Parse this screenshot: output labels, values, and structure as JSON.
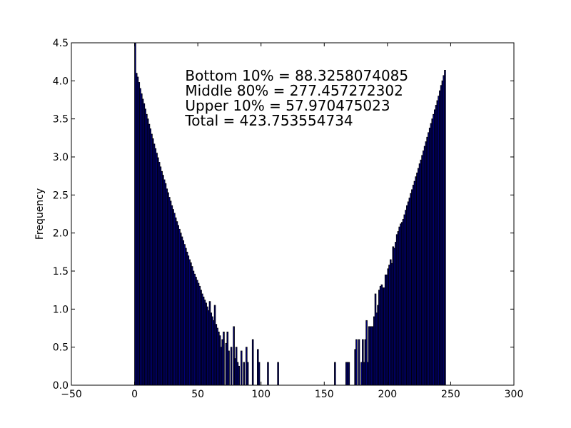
{
  "chart_data": {
    "type": "bar",
    "title": "",
    "xlabel": "",
    "ylabel": "Frequency",
    "xlim": [
      -50,
      300
    ],
    "ylim": [
      0,
      4.5
    ],
    "xticks": [
      -50,
      0,
      50,
      100,
      150,
      200,
      250,
      300
    ],
    "xtick_labels": [
      "−50",
      "0",
      "50",
      "100",
      "150",
      "200",
      "250",
      "300"
    ],
    "yticks": [
      0,
      0.5,
      1.0,
      1.5,
      2.0,
      2.5,
      3.0,
      3.5,
      4.0,
      4.5
    ],
    "ytick_labels": [
      "0.0",
      "0.5",
      "1.0",
      "1.5",
      "2.0",
      "2.5",
      "3.0",
      "3.5",
      "4.0",
      "4.5"
    ],
    "grid": false,
    "bar_color": "#00007f",
    "bar_edge_color": "#000000",
    "bar_width": 1,
    "annotations": [
      "Bottom 10% = 88.3258074085",
      "Middle 80% = 277.457272302",
      "Upper 10% = 57.970475023",
      "Total = 423.753554734"
    ],
    "bars": [
      [
        0,
        4.5
      ],
      [
        1,
        4.1
      ],
      [
        2,
        4.05
      ],
      [
        3,
        3.98
      ],
      [
        4,
        3.9
      ],
      [
        5,
        3.83
      ],
      [
        6,
        3.76
      ],
      [
        7,
        3.7
      ],
      [
        8,
        3.63
      ],
      [
        9,
        3.56
      ],
      [
        10,
        3.5
      ],
      [
        11,
        3.43
      ],
      [
        12,
        3.37
      ],
      [
        13,
        3.3
      ],
      [
        14,
        3.24
      ],
      [
        15,
        3.17
      ],
      [
        16,
        3.11
      ],
      [
        17,
        3.05
      ],
      [
        18,
        2.99
      ],
      [
        19,
        2.93
      ],
      [
        20,
        2.87
      ],
      [
        21,
        2.81
      ],
      [
        22,
        2.76
      ],
      [
        23,
        2.7
      ],
      [
        24,
        2.65
      ],
      [
        25,
        2.58
      ],
      [
        26,
        2.53
      ],
      [
        27,
        2.47
      ],
      [
        28,
        2.42
      ],
      [
        29,
        2.36
      ],
      [
        30,
        2.31
      ],
      [
        31,
        2.26
      ],
      [
        32,
        2.2
      ],
      [
        33,
        2.15
      ],
      [
        34,
        2.1
      ],
      [
        35,
        2.05
      ],
      [
        36,
        2.0
      ],
      [
        37,
        1.95
      ],
      [
        38,
        1.9
      ],
      [
        39,
        1.85
      ],
      [
        40,
        1.8
      ],
      [
        41,
        1.75
      ],
      [
        42,
        1.7
      ],
      [
        43,
        1.65
      ],
      [
        44,
        1.61
      ],
      [
        45,
        1.56
      ],
      [
        46,
        1.5
      ],
      [
        47,
        1.46
      ],
      [
        48,
        1.42
      ],
      [
        49,
        1.38
      ],
      [
        50,
        1.34
      ],
      [
        51,
        1.3
      ],
      [
        52,
        1.25
      ],
      [
        53,
        1.2
      ],
      [
        54,
        1.16
      ],
      [
        55,
        1.12
      ],
      [
        56,
        1.08
      ],
      [
        57,
        1.03
      ],
      [
        58,
        0.98
      ],
      [
        59,
        1.1
      ],
      [
        60,
        0.95
      ],
      [
        61,
        0.9
      ],
      [
        62,
        0.85
      ],
      [
        63,
        1.05
      ],
      [
        64,
        0.8
      ],
      [
        65,
        0.75
      ],
      [
        66,
        0.7
      ],
      [
        67,
        0.65
      ],
      [
        68,
        0.5
      ],
      [
        69,
        0.6
      ],
      [
        70,
        0.7
      ],
      [
        72,
        0.55
      ],
      [
        73,
        0.7
      ],
      [
        74,
        0.45
      ],
      [
        76,
        0.5
      ],
      [
        78,
        0.77
      ],
      [
        79,
        0.35
      ],
      [
        80,
        0.5
      ],
      [
        81,
        0.3
      ],
      [
        82,
        0.25
      ],
      [
        84,
        0.45
      ],
      [
        86,
        0.3
      ],
      [
        88,
        0.5
      ],
      [
        89,
        0.3
      ],
      [
        93,
        0.6
      ],
      [
        97,
        0.47
      ],
      [
        98,
        0.3
      ],
      [
        105,
        0.3
      ],
      [
        113,
        0.3
      ],
      [
        158,
        0.3
      ],
      [
        167,
        0.3
      ],
      [
        168,
        0.3
      ],
      [
        169,
        0.3
      ],
      [
        174,
        0.47
      ],
      [
        175,
        0.6
      ],
      [
        177,
        0.6
      ],
      [
        179,
        0.3
      ],
      [
        180,
        0.6
      ],
      [
        181,
        0.3
      ],
      [
        182,
        0.6
      ],
      [
        183,
        0.85
      ],
      [
        184,
        0.3
      ],
      [
        185,
        0.77
      ],
      [
        186,
        0.77
      ],
      [
        187,
        0.77
      ],
      [
        188,
        0.77
      ],
      [
        189,
        0.9
      ],
      [
        190,
        1.2
      ],
      [
        191,
        0.95
      ],
      [
        192,
        1.05
      ],
      [
        193,
        1.25
      ],
      [
        194,
        1.3
      ],
      [
        195,
        1.32
      ],
      [
        196,
        1.28
      ],
      [
        197,
        1.28
      ],
      [
        198,
        1.45
      ],
      [
        199,
        1.45
      ],
      [
        200,
        1.53
      ],
      [
        201,
        1.58
      ],
      [
        202,
        1.65
      ],
      [
        203,
        1.6
      ],
      [
        204,
        1.82
      ],
      [
        205,
        1.8
      ],
      [
        206,
        1.88
      ],
      [
        207,
        1.98
      ],
      [
        208,
        2.02
      ],
      [
        209,
        2.08
      ],
      [
        210,
        2.12
      ],
      [
        211,
        2.14
      ],
      [
        212,
        2.18
      ],
      [
        213,
        2.24
      ],
      [
        214,
        2.3
      ],
      [
        215,
        2.36
      ],
      [
        216,
        2.41
      ],
      [
        217,
        2.46
      ],
      [
        218,
        2.52
      ],
      [
        219,
        2.57
      ],
      [
        220,
        2.63
      ],
      [
        221,
        2.68
      ],
      [
        222,
        2.74
      ],
      [
        223,
        2.79
      ],
      [
        224,
        2.85
      ],
      [
        225,
        2.91
      ],
      [
        226,
        2.96
      ],
      [
        227,
        3.02
      ],
      [
        228,
        3.08
      ],
      [
        229,
        3.14
      ],
      [
        230,
        3.2
      ],
      [
        231,
        3.26
      ],
      [
        232,
        3.32
      ],
      [
        233,
        3.38
      ],
      [
        234,
        3.44
      ],
      [
        235,
        3.5
      ],
      [
        236,
        3.56
      ],
      [
        237,
        3.62
      ],
      [
        238,
        3.68
      ],
      [
        239,
        3.74
      ],
      [
        240,
        3.8
      ],
      [
        241,
        3.87
      ],
      [
        242,
        3.94
      ],
      [
        243,
        4.0
      ],
      [
        244,
        4.07
      ],
      [
        245,
        4.14
      ]
    ]
  }
}
